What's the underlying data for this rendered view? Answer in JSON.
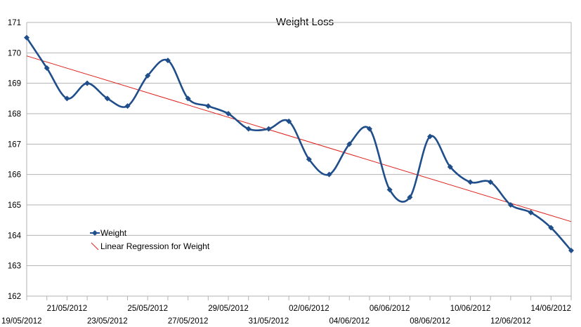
{
  "chart_data": {
    "type": "line",
    "title": "Weight Loss",
    "xlabel": "",
    "ylabel": "",
    "ylim": [
      162,
      171
    ],
    "yticks": [
      162,
      163,
      164,
      165,
      166,
      167,
      168,
      169,
      170,
      171
    ],
    "grid": "horizontal major gridlines",
    "legend_position": "left-bottom inside plot",
    "x_tick_labels": [
      "19/05/2012",
      "21/05/2012",
      "23/05/2012",
      "25/05/2012",
      "27/05/2012",
      "29/05/2012",
      "31/05/2012",
      "02/06/2012",
      "04/06/2012",
      "06/06/2012",
      "08/06/2012",
      "10/06/2012",
      "12/06/2012",
      "14/06/2012"
    ],
    "series": [
      {
        "name": "Weight",
        "color": "#1F4E8A",
        "marker": "diamond",
        "smooth": true,
        "points": [
          {
            "x": "19/05/2012",
            "y": 170.5
          },
          {
            "x": "20/05/2012",
            "y": 169.5
          },
          {
            "x": "21/05/2012",
            "y": 168.5
          },
          {
            "x": "22/05/2012",
            "y": 169.0
          },
          {
            "x": "23/05/2012",
            "y": 168.5
          },
          {
            "x": "24/05/2012",
            "y": 168.25
          },
          {
            "x": "25/05/2012",
            "y": 169.25
          },
          {
            "x": "26/05/2012",
            "y": 169.75
          },
          {
            "x": "27/05/2012",
            "y": 168.5
          },
          {
            "x": "28/05/2012",
            "y": 168.25
          },
          {
            "x": "29/05/2012",
            "y": 168.0
          },
          {
            "x": "30/05/2012",
            "y": 167.5
          },
          {
            "x": "31/05/2012",
            "y": 167.5
          },
          {
            "x": "01/06/2012",
            "y": 167.75
          },
          {
            "x": "02/06/2012",
            "y": 166.5
          },
          {
            "x": "03/06/2012",
            "y": 166.0
          },
          {
            "x": "04/06/2012",
            "y": 167.0
          },
          {
            "x": "05/06/2012",
            "y": 167.5
          },
          {
            "x": "06/06/2012",
            "y": 165.5
          },
          {
            "x": "07/06/2012",
            "y": 165.25
          },
          {
            "x": "08/06/2012",
            "y": 167.25
          },
          {
            "x": "09/06/2012",
            "y": 166.25
          },
          {
            "x": "10/06/2012",
            "y": 165.75
          },
          {
            "x": "11/06/2012",
            "y": 165.75
          },
          {
            "x": "12/06/2012",
            "y": 165.0
          },
          {
            "x": "13/06/2012",
            "y": 164.75
          },
          {
            "x": "14/06/2012",
            "y": 164.25
          },
          {
            "x": "15/06/2012",
            "y": 163.5
          }
        ]
      },
      {
        "name": "Linear Regression for Weight",
        "color": "#E0201B",
        "marker": "none",
        "trendline_of": "Weight",
        "endpoints": [
          {
            "x": "19/05/2012",
            "y": 169.9
          },
          {
            "x": "15/06/2012",
            "y": 164.45
          }
        ]
      }
    ]
  }
}
